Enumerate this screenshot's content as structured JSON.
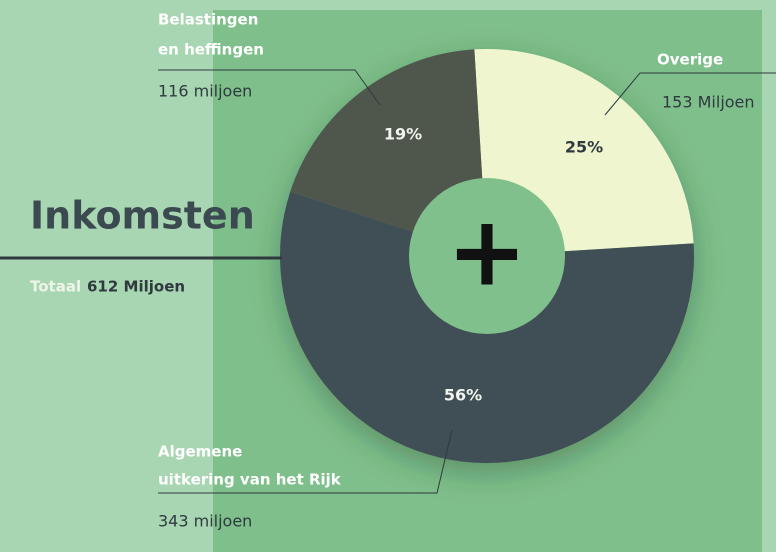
{
  "chart_data": {
    "type": "donut",
    "title": "Inkomsten",
    "subtitle_label": "Totaal",
    "subtitle_value": "612 Miljoen",
    "center_symbol": "+",
    "categories": [
      "Overige",
      "Algemene uitkering van het Rijk",
      "Belastingen en heffingen"
    ],
    "category_lines": [
      [
        "Overige"
      ],
      [
        "Algemene",
        "uitkering van het Rijk"
      ],
      [
        "Belastingen",
        "en heffingen"
      ]
    ],
    "values": [
      25,
      56,
      19
    ],
    "value_labels": [
      "25%",
      "56%",
      "19%"
    ],
    "amount_labels": [
      "153 Miljoen",
      "343 miljoen",
      "116 miljoen"
    ],
    "colors": [
      "#eef5cf",
      "#3f4f57",
      "#4f564c"
    ]
  }
}
